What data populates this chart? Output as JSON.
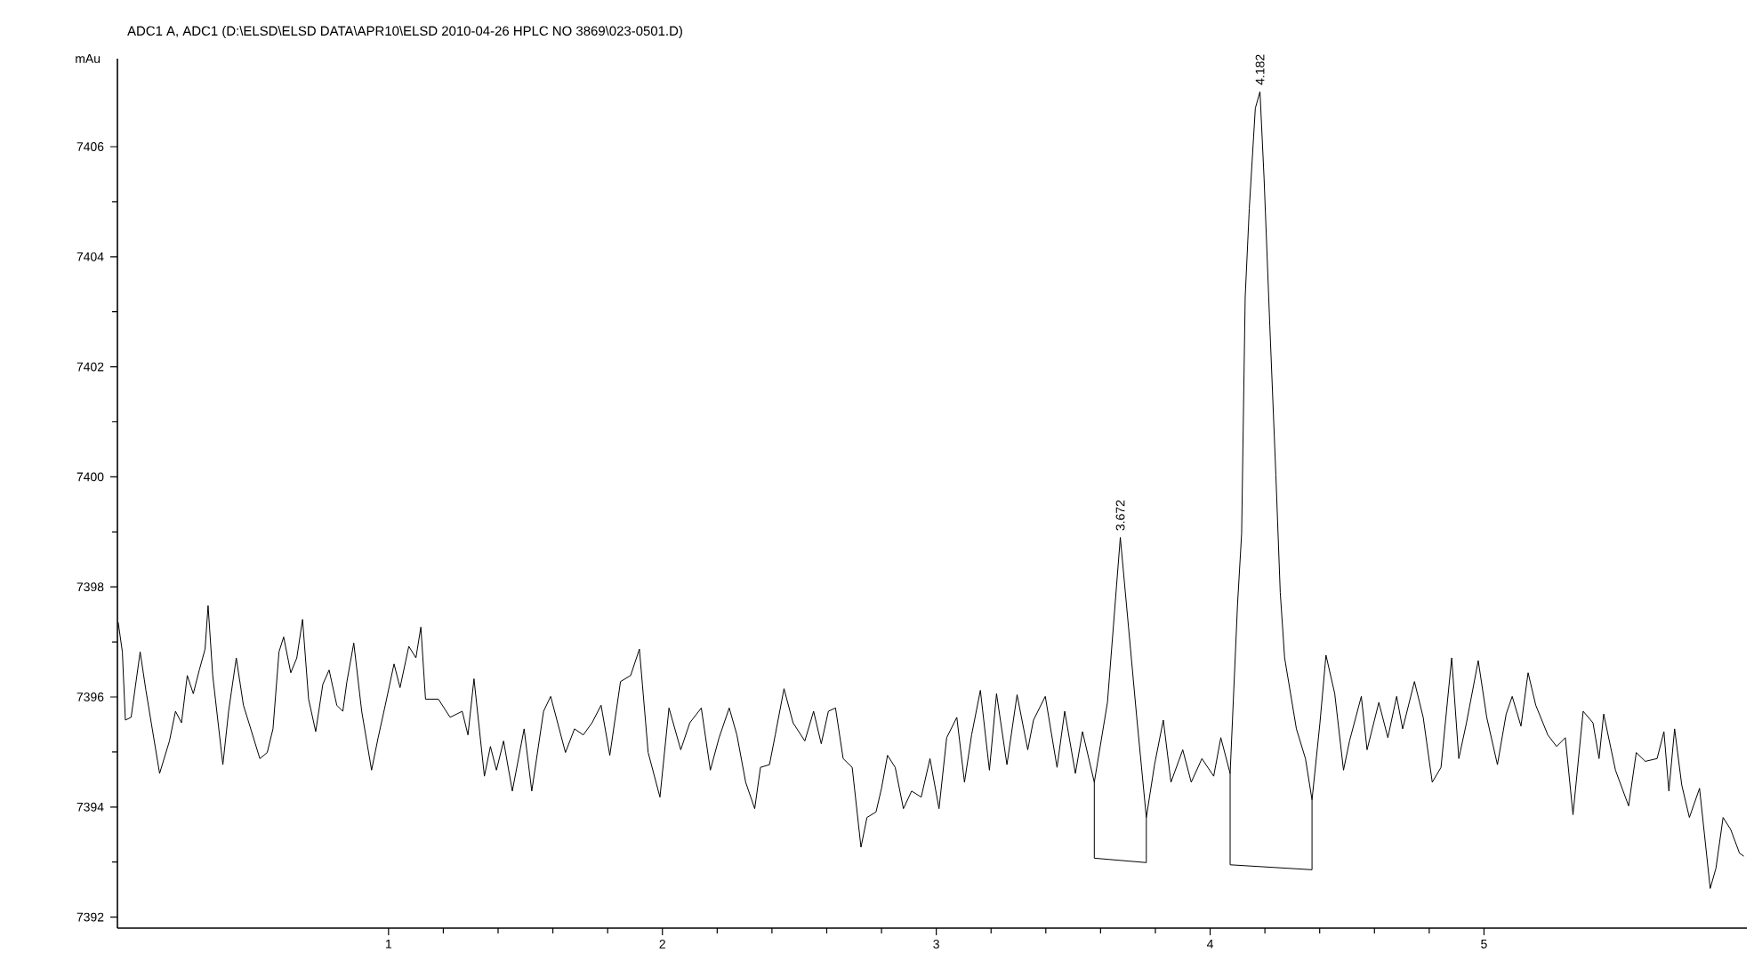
{
  "chart_data": {
    "type": "line",
    "title": "ADC1 A, ADC1 (D:\\ELSD\\ELSD DATA\\APR10\\ELSD 2010-04-26 HPLC NO 3869\\023-0501.D)",
    "ylabel": "mAu",
    "xlim": [
      0.01,
      5.96
    ],
    "ylim": [
      7391.8,
      7407.6
    ],
    "xticks": [
      1,
      2,
      3,
      4,
      5
    ],
    "yticks": [
      7392,
      7394,
      7396,
      7398,
      7400,
      7402,
      7404,
      7406
    ],
    "grid": false,
    "annotations": [
      {
        "text": "3.672",
        "x": 3.672,
        "y": 7398.9
      },
      {
        "text": "4.182",
        "x": 4.182,
        "y": 7407.0
      }
    ],
    "series": [
      {
        "color": "#000000",
        "x": [
          0.013,
          0.028,
          0.039,
          0.06,
          0.093,
          0.114,
          0.164,
          0.2,
          0.222,
          0.244,
          0.265,
          0.287,
          0.309,
          0.33,
          0.341,
          0.358,
          0.395,
          0.416,
          0.444,
          0.47,
          0.49,
          0.53,
          0.557,
          0.578,
          0.6,
          0.617,
          0.643,
          0.665,
          0.686,
          0.708,
          0.734,
          0.76,
          0.783,
          0.811,
          0.833,
          0.848,
          0.873,
          0.902,
          0.938,
          0.962,
          0.988,
          1.02,
          1.042,
          1.074,
          1.1,
          1.118,
          1.135,
          1.182,
          1.225,
          1.269,
          1.29,
          1.312,
          1.35,
          1.372,
          1.394,
          1.42,
          1.452,
          1.495,
          1.523,
          1.566,
          1.592,
          1.646,
          1.679,
          1.711,
          1.743,
          1.776,
          1.808,
          1.847,
          1.884,
          1.916,
          1.948,
          1.991,
          2.024,
          2.067,
          2.1,
          2.142,
          2.175,
          2.207,
          2.244,
          2.272,
          2.304,
          2.337,
          2.358,
          2.391,
          2.412,
          2.444,
          2.477,
          2.52,
          2.552,
          2.58,
          2.606,
          2.632,
          2.66,
          2.693,
          2.725,
          2.747,
          2.78,
          2.8,
          2.822,
          2.85,
          2.88,
          2.91,
          2.945,
          2.977,
          3.01,
          3.038,
          3.075,
          3.103,
          3.129,
          3.161,
          3.194,
          3.22,
          3.258,
          3.295,
          3.334,
          3.355,
          3.398,
          3.441,
          3.469,
          3.508,
          3.534,
          3.577,
          3.625,
          3.672,
          3.732,
          3.767,
          3.797,
          3.829,
          3.857,
          3.9,
          3.931,
          3.97,
          4.013,
          4.039,
          4.073,
          4.1,
          4.115,
          4.128,
          4.143,
          4.165,
          4.182,
          4.197,
          4.218,
          4.24,
          4.256,
          4.272,
          4.315,
          4.348,
          4.372,
          4.401,
          4.423,
          4.455,
          4.487,
          4.509,
          4.552,
          4.573,
          4.616,
          4.649,
          4.681,
          4.703,
          4.746,
          4.778,
          4.811,
          4.843,
          4.882,
          4.908,
          4.936,
          4.979,
          5.01,
          5.049,
          5.081,
          5.103,
          5.135,
          5.161,
          5.189,
          5.233,
          5.265,
          5.297,
          5.325,
          5.362,
          5.398,
          5.42,
          5.437,
          5.48,
          5.528,
          5.556,
          5.589,
          5.632,
          5.657,
          5.675,
          5.696,
          5.722,
          5.75,
          5.787,
          5.826,
          5.847,
          5.873,
          5.901,
          5.933,
          5.948
        ],
        "values": [
          7397.35,
          7396.82,
          7395.58,
          7395.63,
          7396.82,
          7396.12,
          7394.61,
          7395.2,
          7395.74,
          7395.53,
          7396.39,
          7396.06,
          7396.49,
          7396.87,
          7397.66,
          7396.39,
          7394.77,
          7395.74,
          7396.71,
          7395.85,
          7395.53,
          7394.88,
          7394.99,
          7395.42,
          7396.82,
          7397.09,
          7396.44,
          7396.71,
          7397.41,
          7395.96,
          7395.37,
          7396.23,
          7396.49,
          7395.85,
          7395.74,
          7396.28,
          7396.98,
          7395.74,
          7394.67,
          7395.26,
          7395.85,
          7396.6,
          7396.17,
          7396.92,
          7396.71,
          7397.27,
          7395.96,
          7395.96,
          7395.63,
          7395.74,
          7395.31,
          7396.33,
          7394.56,
          7395.1,
          7394.67,
          7395.2,
          7394.29,
          7395.42,
          7394.29,
          7395.74,
          7396.01,
          7394.99,
          7395.42,
          7395.31,
          7395.53,
          7395.85,
          7394.94,
          7396.28,
          7396.39,
          7396.87,
          7394.99,
          7394.18,
          7395.8,
          7395.04,
          7395.53,
          7395.8,
          7394.67,
          7395.26,
          7395.8,
          7395.31,
          7394.45,
          7393.97,
          7394.72,
          7394.77,
          7395.31,
          7396.15,
          7395.53,
          7395.2,
          7395.74,
          7395.15,
          7395.74,
          7395.8,
          7394.88,
          7394.72,
          7393.27,
          7393.81,
          7393.91,
          7394.34,
          7394.94,
          7394.72,
          7393.97,
          7394.29,
          7394.18,
          7394.88,
          7393.97,
          7395.26,
          7395.63,
          7394.45,
          7395.31,
          7396.12,
          7394.67,
          7396.06,
          7394.77,
          7396.04,
          7395.04,
          7395.58,
          7396.01,
          7394.72,
          7395.74,
          7394.61,
          7395.37,
          7394.45,
          7395.9,
          7398.9,
          7395.63,
          7393.81,
          7394.77,
          7395.58,
          7394.45,
          7395.04,
          7394.45,
          7394.88,
          7394.56,
          7395.26,
          7394.61,
          7397.68,
          7398.97,
          7403.27,
          7404.88,
          7406.7,
          7407.0,
          7405.42,
          7402.74,
          7400.03,
          7397.9,
          7396.71,
          7395.42,
          7394.88,
          7394.13,
          7395.53,
          7396.76,
          7396.06,
          7394.67,
          7395.2,
          7396.01,
          7395.04,
          7395.9,
          7395.26,
          7396.01,
          7395.42,
          7396.28,
          7395.63,
          7394.45,
          7394.72,
          7396.71,
          7394.88,
          7395.53,
          7396.66,
          7395.63,
          7394.77,
          7395.69,
          7396.01,
          7395.47,
          7396.44,
          7395.85,
          7395.31,
          7395.1,
          7395.26,
          7393.86,
          7395.74,
          7395.53,
          7394.88,
          7395.69,
          7394.67,
          7394.02,
          7394.99,
          7394.83,
          7394.88,
          7395.37,
          7394.29,
          7395.42,
          7394.4,
          7393.81,
          7394.34,
          7392.52,
          7392.89,
          7393.81,
          7393.59,
          7393.16,
          7393.11
        ]
      },
      {
        "color": "#000000",
        "x": [
          3.577,
          3.577,
          3.767,
          3.767
        ],
        "values": [
          7394.45,
          7393.07,
          7392.99,
          7393.81
        ]
      },
      {
        "color": "#000000",
        "x": [
          4.073,
          4.073,
          4.372,
          4.372
        ],
        "values": [
          7394.61,
          7392.95,
          7392.86,
          7394.13
        ]
      }
    ]
  }
}
